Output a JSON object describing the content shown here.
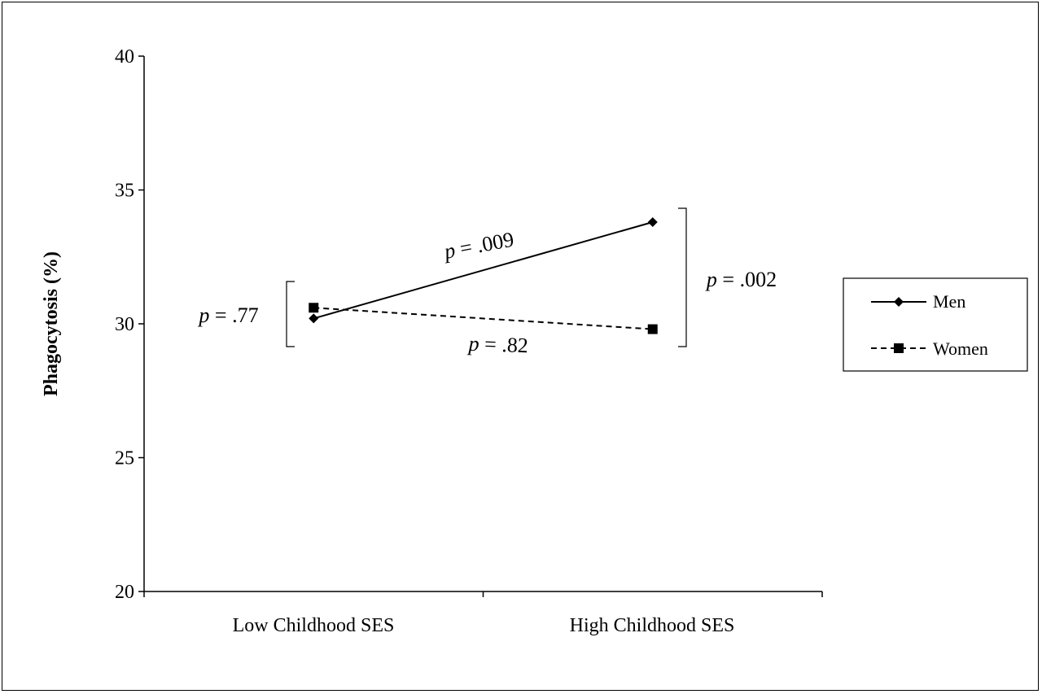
{
  "chart_data": {
    "type": "line",
    "title": "",
    "xlabel": "",
    "ylabel": "Phagocytosis (%)",
    "categories": [
      "Low Childhood SES",
      "High Childhood SES"
    ],
    "ylim": [
      20,
      40
    ],
    "yticks": [
      20,
      25,
      30,
      35,
      40
    ],
    "grid": false,
    "legend_position": "right",
    "series": [
      {
        "name": "Men",
        "values": [
          30.2,
          33.8
        ],
        "line_style": "solid",
        "marker": "diamond",
        "color": "#000000"
      },
      {
        "name": "Women",
        "values": [
          30.6,
          29.8
        ],
        "line_style": "dashed",
        "marker": "square",
        "color": "#000000"
      }
    ],
    "annotations": [
      {
        "id": "men-slope",
        "p": "p",
        "rest": " = .009"
      },
      {
        "id": "women-slope",
        "p": "p",
        "rest": " = .82"
      },
      {
        "id": "low-diff",
        "p": "p",
        "rest": " = .77"
      },
      {
        "id": "high-diff",
        "p": "p",
        "rest": " = .002"
      }
    ]
  }
}
